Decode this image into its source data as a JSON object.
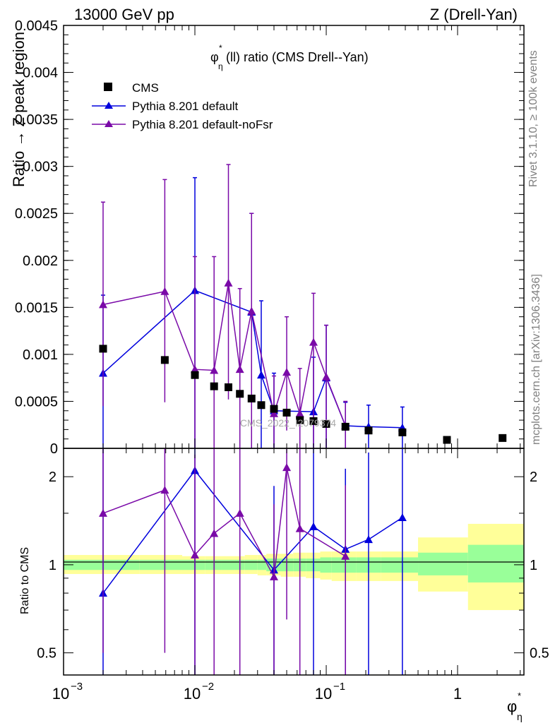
{
  "header": {
    "left": "13000 GeV pp",
    "right": "Z (Drell-Yan)"
  },
  "side_labels": {
    "rivet": "Rivet 3.1.10, ≥ 100k events",
    "mcplots": "mcplots.cern.ch [arXiv:1306.3436]"
  },
  "watermark": "CMS_2022_I2079374",
  "colors": {
    "cms": "#000000",
    "default": "#0000dd",
    "nofsr": "#7a0aa8",
    "band_inner": "#99ff99",
    "band_outer": "#ffff99"
  },
  "chart_data": [
    {
      "type": "scatter",
      "title": "φ*η(ll) ratio (CMS Drell--Yan)",
      "title_main": "φ",
      "title_sup": "*",
      "title_sub": "η",
      "title_rest": "(ll) ratio (CMS Drell--Yan)",
      "ylabel": "Ratio → Z peak region",
      "xscale": "log",
      "xlim": [
        0.001,
        3.2
      ],
      "ylim": [
        0,
        0.0045
      ],
      "yticks": [
        0,
        0.0005,
        0.001,
        0.0015,
        0.002,
        0.0025,
        0.003,
        0.0035,
        0.004,
        0.0045
      ],
      "ytick_labels": [
        "0",
        "0.0005",
        "0.001",
        "0.0015",
        "0.002",
        "0.0025",
        "0.003",
        "0.0035",
        "0.004",
        "0.0045"
      ],
      "legend": [
        "CMS",
        "Pythia 8.201 default",
        "Pythia 8.201 default-noFsr"
      ],
      "legend_position": "top-left",
      "series": [
        {
          "name": "CMS",
          "style": "marker",
          "x": [
            0.002,
            0.0059,
            0.01,
            0.014,
            0.018,
            0.022,
            0.027,
            0.032,
            0.04,
            0.05,
            0.063,
            0.08,
            0.1,
            0.14,
            0.21,
            0.38,
            0.83,
            2.2
          ],
          "y": [
            0.00106,
            0.00094,
            0.00078,
            0.00066,
            0.00065,
            0.00058,
            0.00053,
            0.00046,
            0.00042,
            0.00038,
            0.0003,
            0.00029,
            0.00026,
            0.00023,
            0.00019,
            0.00017,
            9e-05,
            0.00011
          ]
        },
        {
          "name": "Pythia 8.201 default",
          "style": "line",
          "x": [
            0.002,
            0.01,
            0.027,
            0.032,
            0.04,
            0.08,
            0.1,
            0.14,
            0.21,
            0.38
          ],
          "y": [
            0.0008,
            0.00168,
            0.00145,
            0.00078,
            0.0004,
            0.00039,
            0.00075,
            0.00024,
            0.00023,
            0.00022
          ],
          "err_low": [
            0.0008,
            0.00168,
            0.00145,
            0.00078,
            0.0004,
            0.00039,
            0.00075,
            0.00024,
            0.00023,
            0.00022
          ],
          "err_high": [
            0.00083,
            0.0012,
            0.00105,
            0.00079,
            0.0004,
            0.00058,
            0.00056,
            0.00025,
            0.00023,
            0.00022
          ]
        },
        {
          "name": "Pythia 8.201 default-noFsr",
          "style": "line",
          "x": [
            0.002,
            0.0059,
            0.01,
            0.014,
            0.018,
            0.022,
            0.027,
            0.04,
            0.05,
            0.063,
            0.08,
            0.1,
            0.14
          ],
          "y": [
            0.00153,
            0.00167,
            0.00084,
            0.00083,
            0.00176,
            0.00084,
            0.00146,
            0.00037,
            0.00081,
            0.00037,
            0.00113,
            0.00076,
            0.00024
          ],
          "err_low": [
            0.00108,
            0.00118,
            0.00084,
            0.00083,
            0.00124,
            0.00084,
            0.00146,
            0.00037,
            0.00062,
            0.00037,
            0.00113,
            0.00076,
            0.00024
          ],
          "err_high": [
            0.00109,
            0.00119,
            0.0012,
            0.00121,
            0.00126,
            0.00086,
            0.00104,
            0.0004,
            0.00059,
            0.00048,
            0.00052,
            0.00055,
            0.00026
          ]
        }
      ]
    },
    {
      "type": "scatter",
      "xlabel": "φ*η",
      "xlabel_main": "φ",
      "xlabel_sup": "*",
      "xlabel_sub": "η",
      "ylabel": "Ratio to CMS",
      "xscale": "log",
      "yscale": "log",
      "xlim": [
        0.001,
        3.2
      ],
      "ylim": [
        0.42,
        2.5
      ],
      "xticks": [
        0.001,
        0.01,
        0.1,
        1
      ],
      "xtick_labels": [
        {
          "base": "10",
          "exp": "−3"
        },
        {
          "base": "10",
          "exp": "−2"
        },
        {
          "base": "10",
          "exp": "−1"
        },
        {
          "base": "1",
          "exp": ""
        }
      ],
      "yticks": [
        0.5,
        1,
        2
      ],
      "ytick_labels": [
        "0.5",
        "1",
        "2"
      ],
      "bands": {
        "edges": [
          0.001,
          0.0038,
          0.008,
          0.012,
          0.016,
          0.02,
          0.024,
          0.03,
          0.035,
          0.045,
          0.056,
          0.07,
          0.09,
          0.11,
          0.17,
          0.26,
          0.5,
          1.2,
          3.2
        ],
        "inner_low": [
          0.96,
          0.96,
          0.96,
          0.96,
          0.96,
          0.96,
          0.96,
          0.96,
          0.95,
          0.95,
          0.95,
          0.95,
          0.94,
          0.94,
          0.94,
          0.94,
          0.92,
          0.87
        ],
        "inner_high": [
          1.04,
          1.04,
          1.04,
          1.04,
          1.04,
          1.04,
          1.04,
          1.04,
          1.05,
          1.05,
          1.05,
          1.05,
          1.06,
          1.06,
          1.06,
          1.06,
          1.1,
          1.17
        ],
        "outer_low": [
          0.93,
          0.93,
          0.93,
          0.93,
          0.93,
          0.93,
          0.93,
          0.92,
          0.92,
          0.91,
          0.91,
          0.9,
          0.89,
          0.88,
          0.88,
          0.88,
          0.81,
          0.7
        ],
        "outer_high": [
          1.08,
          1.08,
          1.07,
          1.07,
          1.07,
          1.07,
          1.08,
          1.08,
          1.09,
          1.09,
          1.1,
          1.1,
          1.11,
          1.11,
          1.11,
          1.11,
          1.24,
          1.38
        ]
      },
      "series": [
        {
          "name": "Pythia 8.201 default",
          "x": [
            0.002,
            0.01,
            0.04,
            0.08,
            0.14,
            0.21,
            0.38
          ],
          "y": [
            0.8,
            2.1,
            0.96,
            1.35,
            1.13,
            1.22,
            1.45
          ],
          "err_low": [
            0.4,
            1.7,
            0.6,
            1.0,
            0.8,
            0.9,
            1.1
          ],
          "err_high": [
            1.7,
            2.0,
            0.9,
            1.4,
            1.0,
            1.2,
            1.5
          ]
        },
        {
          "name": "Pythia 8.201 default-noFsr",
          "x": [
            0.002,
            0.0059,
            0.01,
            0.014,
            0.022,
            0.04,
            0.05,
            0.063,
            0.14
          ],
          "y": [
            1.5,
            1.8,
            1.08,
            1.28,
            1.5,
            0.91,
            2.15,
            1.33,
            1.07
          ],
          "err_low": [
            1.0,
            1.3,
            0.8,
            1.0,
            1.2,
            0.6,
            1.5,
            1.0,
            0.7
          ],
          "err_high": [
            1.0,
            1.4,
            1.3,
            1.5,
            1.3,
            0.7,
            1.3,
            1.2,
            0.8
          ]
        }
      ]
    }
  ]
}
